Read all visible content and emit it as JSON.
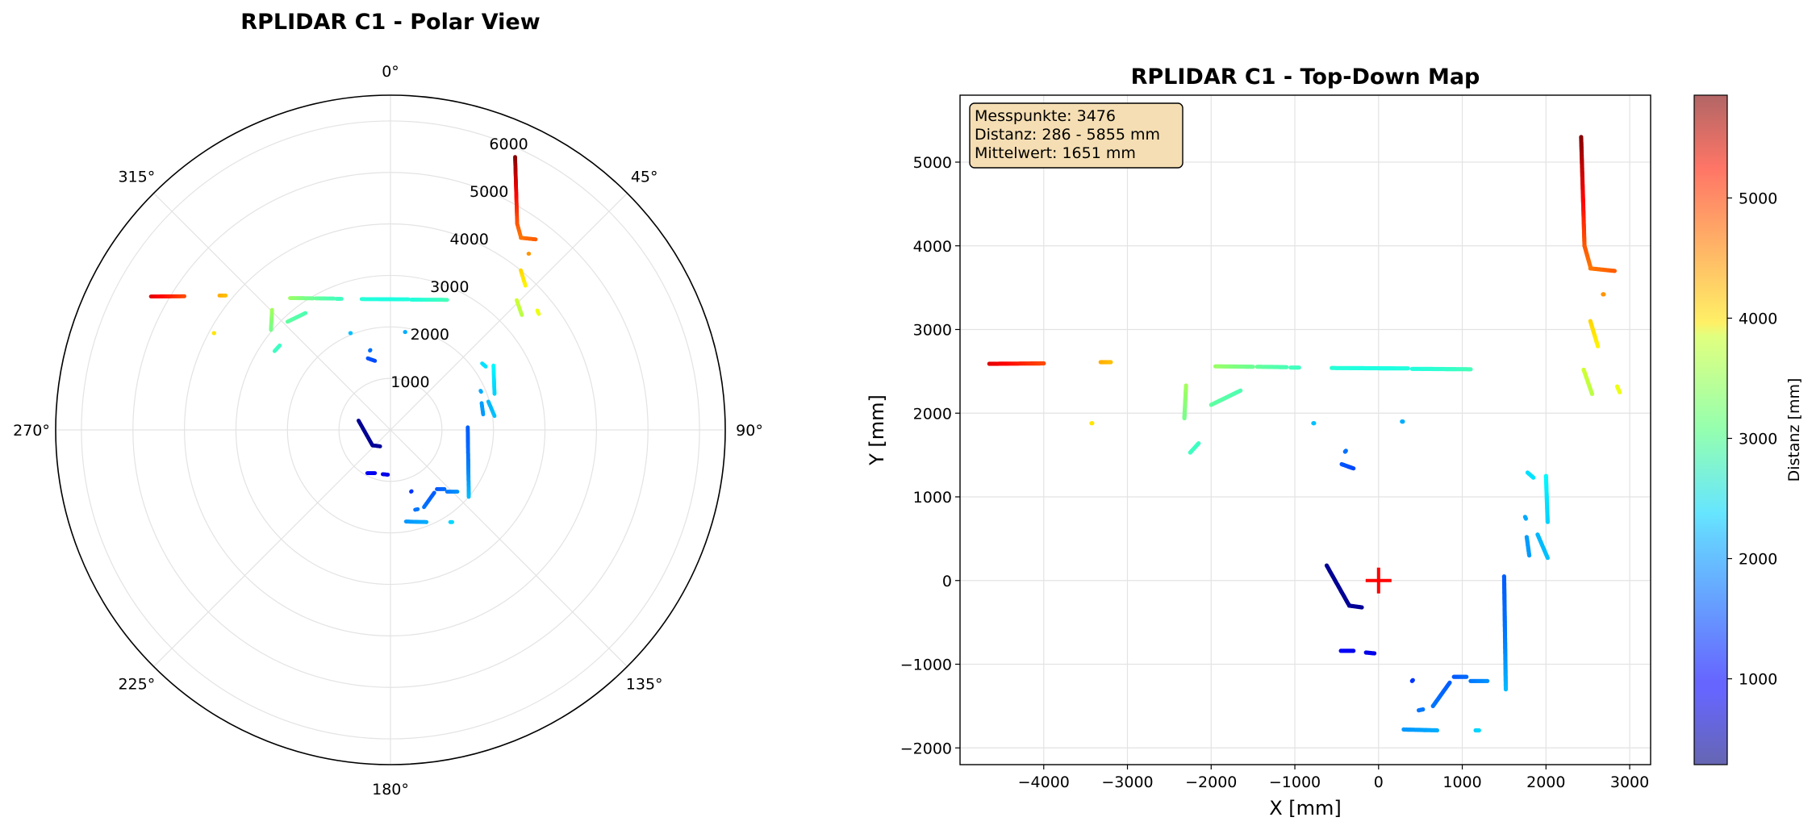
{
  "chart_data": [
    {
      "type": "scatter",
      "projection": "polar",
      "title": "RPLIDAR C1 - Polar View",
      "theta_zero": "N",
      "theta_direction": "clockwise",
      "theta_ticks": [
        "0°",
        "45°",
        "90°",
        "135°",
        "180°",
        "225°",
        "270°",
        "315°"
      ],
      "r_ticks": [
        "1000",
        "2000",
        "3000",
        "4000",
        "5000",
        "6000"
      ],
      "r_tick_values": [
        1000,
        2000,
        3000,
        4000,
        5000,
        6000
      ],
      "rlim": [
        0,
        6500
      ],
      "grid": true,
      "colormap": "jet",
      "color_range": [
        286,
        5855
      ],
      "note": "same scan as top-down map; points rendered via polar transform of (x,y)"
    },
    {
      "type": "scatter",
      "title": "RPLIDAR C1 - Top-Down Map",
      "xlabel": "X [mm]",
      "ylabel": "Y [mm]",
      "xlim": [
        -5000,
        3250
      ],
      "ylim": [
        -2200,
        5800
      ],
      "x_ticks": [
        -4000,
        -3000,
        -2000,
        -1000,
        0,
        1000,
        2000,
        3000
      ],
      "x_tick_labels": [
        "−4000",
        "−3000",
        "−2000",
        "−1000",
        "0",
        "1000",
        "2000",
        "3000"
      ],
      "y_ticks": [
        -2000,
        -1000,
        0,
        1000,
        2000,
        3000,
        4000,
        5000
      ],
      "y_tick_labels": [
        "−2000",
        "−1000",
        "0",
        "1000",
        "2000",
        "3000",
        "4000",
        "5000"
      ],
      "grid": true,
      "origin_marker": {
        "x": 0,
        "y": 0,
        "color": "#ff0000",
        "marker": "+"
      },
      "colorbar": {
        "label": "Distanz [mm]",
        "range": [
          286,
          5855
        ],
        "ticks": [
          1000,
          2000,
          3000,
          4000,
          5000
        ],
        "tick_labels": [
          "1000",
          "2000",
          "3000",
          "4000",
          "5000"
        ]
      },
      "info_box": {
        "line1": "Messpunkte: 3476",
        "line2": "Distanz: 286 - 5855 mm",
        "line3": "Mittelwert: 1651 mm",
        "background": "#f5deb3"
      },
      "segments": [
        {
          "from": [
            -4650,
            2590
          ],
          "to": [
            -4000,
            2595
          ]
        },
        {
          "from": [
            -3320,
            2610
          ],
          "to": [
            -3200,
            2610
          ]
        },
        {
          "from": [
            -3430,
            1880
          ],
          "to": [
            -3420,
            1880
          ]
        },
        {
          "from": [
            -2300,
            2330
          ],
          "to": [
            -2320,
            1940
          ]
        },
        {
          "from": [
            -2250,
            1530
          ],
          "to": [
            -2150,
            1640
          ]
        },
        {
          "from": [
            -2000,
            2100
          ],
          "to": [
            -1650,
            2270
          ]
        },
        {
          "from": [
            -1950,
            2560
          ],
          "to": [
            -1500,
            2555
          ]
        },
        {
          "from": [
            -1450,
            2555
          ],
          "to": [
            -1100,
            2550
          ]
        },
        {
          "from": [
            -1050,
            2545
          ],
          "to": [
            -950,
            2545
          ]
        },
        {
          "from": [
            -560,
            2540
          ],
          "to": [
            350,
            2535
          ]
        },
        {
          "from": [
            400,
            2530
          ],
          "to": [
            1100,
            2525
          ]
        },
        {
          "from": [
            -780,
            1880
          ],
          "to": [
            -770,
            1880
          ]
        },
        {
          "from": [
            280,
            1900
          ],
          "to": [
            290,
            1900
          ]
        },
        {
          "from": [
            -440,
            1390
          ],
          "to": [
            -300,
            1340
          ]
        },
        {
          "from": [
            -400,
            1540
          ],
          "to": [
            -390,
            1550
          ]
        },
        {
          "from": [
            -620,
            180
          ],
          "to": [
            -350,
            -300
          ],
          "c": 400
        },
        {
          "from": [
            -350,
            -300
          ],
          "to": [
            -200,
            -320
          ],
          "c": 420
        },
        {
          "from": [
            -450,
            -840
          ],
          "to": [
            -300,
            -840
          ]
        },
        {
          "from": [
            -150,
            -860
          ],
          "to": [
            -50,
            -870
          ]
        },
        {
          "from": [
            1500,
            50
          ],
          "to": [
            1520,
            -1300
          ]
        },
        {
          "from": [
            2000,
            1250
          ],
          "to": [
            2020,
            700
          ]
        },
        {
          "from": [
            1780,
            1290
          ],
          "to": [
            1850,
            1230
          ]
        },
        {
          "from": [
            1900,
            550
          ],
          "to": [
            2020,
            270
          ]
        },
        {
          "from": [
            1750,
            760
          ],
          "to": [
            1760,
            740
          ]
        },
        {
          "from": [
            1770,
            520
          ],
          "to": [
            1800,
            300
          ]
        },
        {
          "from": [
            650,
            -1500
          ],
          "to": [
            850,
            -1220
          ]
        },
        {
          "from": [
            900,
            -1150
          ],
          "to": [
            1050,
            -1150
          ]
        },
        {
          "from": [
            1100,
            -1200
          ],
          "to": [
            1300,
            -1200
          ]
        },
        {
          "from": [
            300,
            -1780
          ],
          "to": [
            700,
            -1790
          ]
        },
        {
          "from": [
            400,
            -1200
          ],
          "to": [
            410,
            -1190
          ]
        },
        {
          "from": [
            480,
            -1550
          ],
          "to": [
            530,
            -1540
          ]
        },
        {
          "from": [
            1160,
            -1790
          ],
          "to": [
            1200,
            -1790
          ]
        },
        {
          "from": [
            2420,
            5300
          ],
          "to": [
            2460,
            4000
          ]
        },
        {
          "from": [
            2460,
            4000
          ],
          "to": [
            2530,
            3750
          ]
        },
        {
          "from": [
            2530,
            3730
          ],
          "to": [
            2820,
            3700
          ]
        },
        {
          "from": [
            2530,
            3100
          ],
          "to": [
            2620,
            2800
          ]
        },
        {
          "from": [
            2450,
            2520
          ],
          "to": [
            2550,
            2230
          ]
        },
        {
          "from": [
            2850,
            2320
          ],
          "to": [
            2880,
            2250
          ]
        },
        {
          "from": [
            2680,
            3420
          ],
          "to": [
            2690,
            3420
          ]
        }
      ]
    }
  ]
}
